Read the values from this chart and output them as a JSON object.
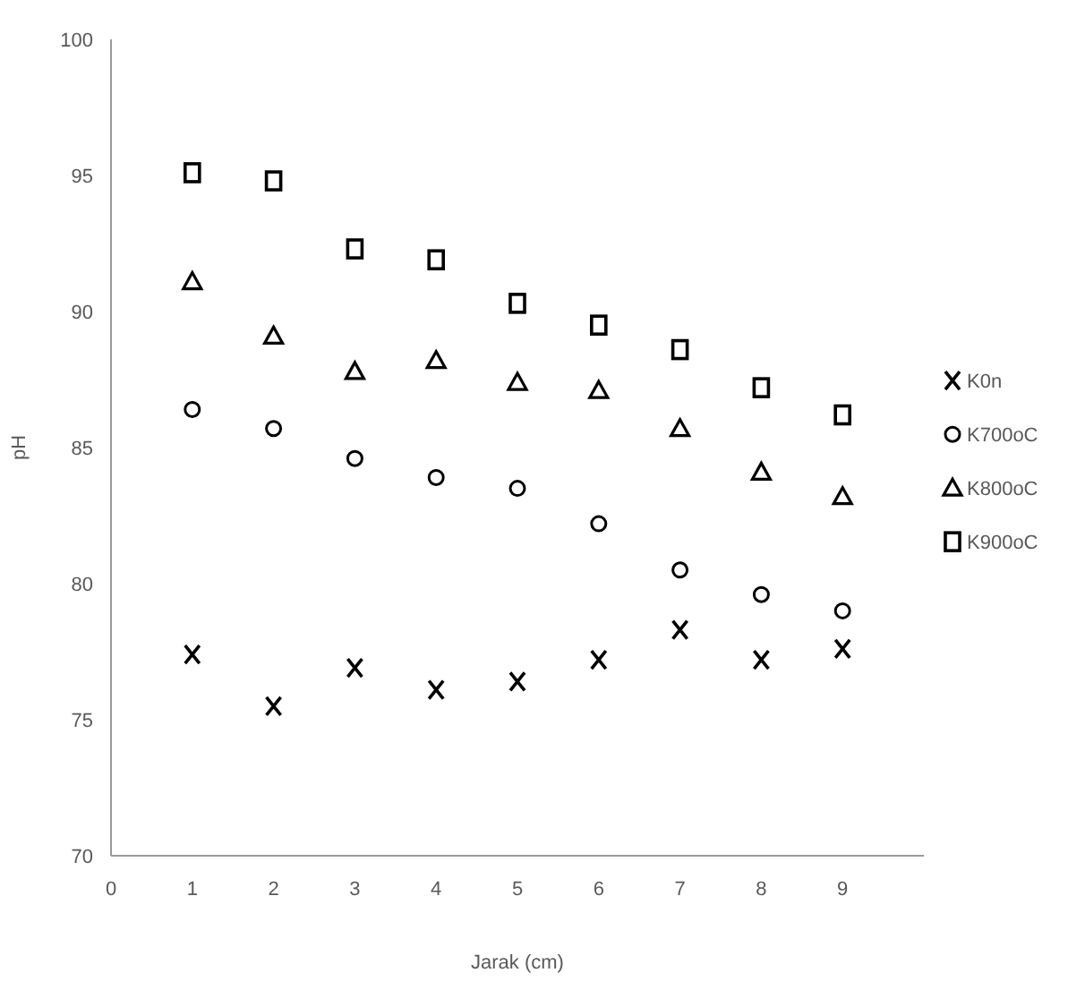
{
  "chart_data": {
    "type": "scatter",
    "xlabel": "Jarak (cm)",
    "ylabel": "pH",
    "x": [
      1,
      2,
      3,
      4,
      5,
      6,
      7,
      8,
      9
    ],
    "xlim": [
      0,
      10
    ],
    "xticks": [
      0,
      1,
      2,
      3,
      4,
      5,
      6,
      7,
      8,
      9
    ],
    "ylim": [
      70,
      100
    ],
    "yticks": [
      70,
      75,
      80,
      85,
      90,
      95,
      100
    ],
    "grid": false,
    "legend": "right",
    "series": [
      {
        "name": "K0n",
        "color": "#000000",
        "marker": "cross",
        "values": [
          77.4,
          75.5,
          76.9,
          76.1,
          76.4,
          77.2,
          78.3,
          77.2,
          77.6
        ]
      },
      {
        "name": "K700oC",
        "color": "#000000",
        "marker": "circle",
        "values": [
          86.4,
          85.7,
          84.6,
          83.9,
          83.5,
          82.2,
          80.5,
          79.6,
          79.0
        ]
      },
      {
        "name": "K800oC",
        "color": "#000000",
        "marker": "triangle",
        "values": [
          91.1,
          89.1,
          87.8,
          88.2,
          87.4,
          87.1,
          85.7,
          84.1,
          83.2
        ]
      },
      {
        "name": "K900oC",
        "color": "#000000",
        "marker": "square",
        "values": [
          95.1,
          94.8,
          92.3,
          91.9,
          90.3,
          89.5,
          88.6,
          87.2,
          86.2
        ]
      }
    ]
  }
}
